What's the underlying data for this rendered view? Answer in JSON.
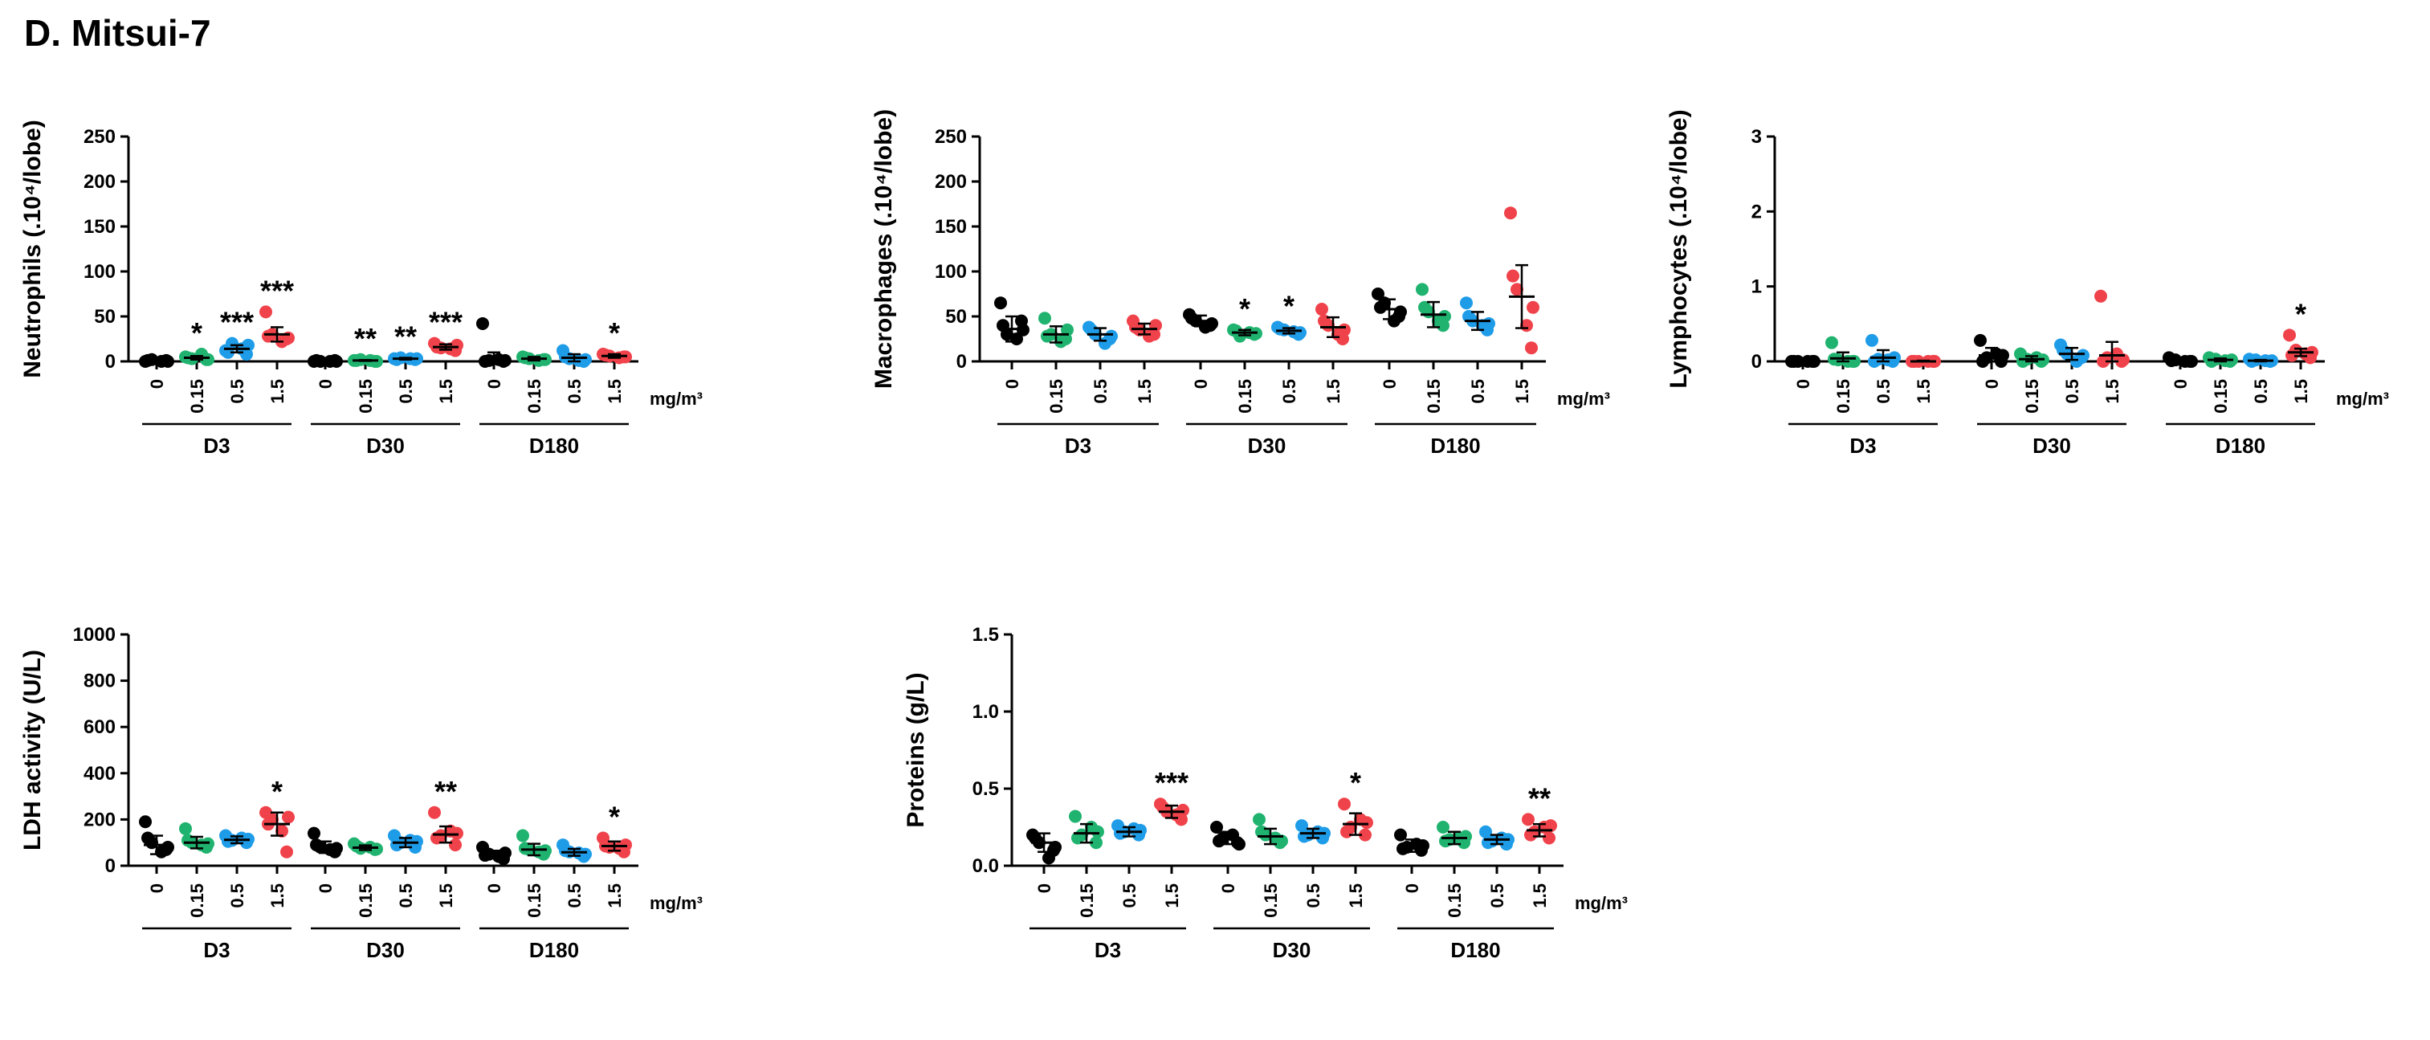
{
  "figure": {
    "title": "D. Mitsui-7"
  },
  "chart_data": [
    {
      "type": "scatter",
      "id": "neutrophils",
      "ylabel": "Neutrophils (.10⁴/lobe)",
      "ylim": [
        0,
        250
      ],
      "yticks": [
        "0",
        "50",
        "100",
        "150",
        "200",
        "250"
      ],
      "ytick_values": [
        0,
        50,
        100,
        150,
        200,
        250
      ],
      "unit_label": "mg/m³",
      "doses": [
        "0",
        "0.15",
        "0.5",
        "1.5"
      ],
      "groups": [
        "D3",
        "D30",
        "D180"
      ],
      "series_colors": [
        "#000000",
        "#1fb36f",
        "#1e9ce8",
        "#f0424a"
      ],
      "data": [
        [
          {
            "points": [
              0,
              1,
              2,
              0,
              1,
              0
            ],
            "mean": 1,
            "sd": 1,
            "sig": ""
          },
          {
            "points": [
              5,
              2,
              3,
              8,
              4,
              2
            ],
            "mean": 4,
            "sd": 2,
            "sig": "*"
          },
          {
            "points": [
              12,
              8,
              20,
              14,
              10,
              18
            ],
            "mean": 14,
            "sd": 4,
            "sig": "***"
          },
          {
            "points": [
              55,
              25,
              30,
              22,
              28,
              26
            ],
            "mean": 30,
            "sd": 8,
            "sig": "***"
          }
        ],
        [
          {
            "points": [
              0,
              1,
              0,
              0,
              1,
              0
            ],
            "mean": 0,
            "sd": 0.5,
            "sig": ""
          },
          {
            "points": [
              1,
              0,
              2,
              1,
              1,
              0
            ],
            "mean": 1,
            "sd": 0.5,
            "sig": "**"
          },
          {
            "points": [
              3,
              2,
              4,
              3,
              2,
              3
            ],
            "mean": 3,
            "sd": 1,
            "sig": "**"
          },
          {
            "points": [
              20,
              12,
              15,
              14,
              16,
              18
            ],
            "mean": 16,
            "sd": 3,
            "sig": "***"
          }
        ],
        [
          {
            "points": [
              42,
              0,
              1,
              2,
              0,
              1
            ],
            "mean": 2,
            "sd": 8,
            "sig": ""
          },
          {
            "points": [
              5,
              2,
              3,
              1,
              4,
              2
            ],
            "mean": 3,
            "sd": 2,
            "sig": ""
          },
          {
            "points": [
              12,
              0,
              3,
              1,
              5,
              2
            ],
            "mean": 4,
            "sd": 4,
            "sig": ""
          },
          {
            "points": [
              8,
              5,
              6,
              4,
              7,
              5
            ],
            "mean": 6,
            "sd": 2,
            "sig": "*"
          }
        ]
      ]
    },
    {
      "type": "scatter",
      "id": "macrophages",
      "ylabel": "Macrophages (.10⁴/lobe)",
      "ylim": [
        0,
        250
      ],
      "yticks": [
        "0",
        "50",
        "100",
        "150",
        "200",
        "250"
      ],
      "ytick_values": [
        0,
        50,
        100,
        150,
        200,
        250
      ],
      "unit_label": "mg/m³",
      "doses": [
        "0",
        "0.15",
        "0.5",
        "1.5"
      ],
      "groups": [
        "D3",
        "D30",
        "D180"
      ],
      "series_colors": [
        "#000000",
        "#1fb36f",
        "#1e9ce8",
        "#f0424a"
      ],
      "data": [
        [
          {
            "points": [
              65,
              45,
              30,
              25,
              40,
              35
            ],
            "mean": 36,
            "sd": 14,
            "sig": ""
          },
          {
            "points": [
              48,
              25,
              30,
              22,
              28,
              35
            ],
            "mean": 30,
            "sd": 9,
            "sig": ""
          },
          {
            "points": [
              38,
              25,
              30,
              20,
              35,
              28
            ],
            "mean": 30,
            "sd": 7,
            "sig": ""
          },
          {
            "points": [
              45,
              30,
              35,
              28,
              38,
              40
            ],
            "mean": 36,
            "sd": 6,
            "sig": ""
          }
        ],
        [
          {
            "points": [
              52,
              40,
              45,
              38,
              48,
              42
            ],
            "mean": 45,
            "sd": 6,
            "sig": ""
          },
          {
            "points": [
              35,
              30,
              28,
              32,
              34,
              31
            ],
            "mean": 32,
            "sd": 3,
            "sig": "*"
          },
          {
            "points": [
              38,
              30,
              35,
              33,
              36,
              32
            ],
            "mean": 34,
            "sd": 3,
            "sig": "*"
          },
          {
            "points": [
              58,
              25,
              40,
              30,
              45,
              35
            ],
            "mean": 38,
            "sd": 11,
            "sig": ""
          }
        ],
        [
          {
            "points": [
              75,
              50,
              65,
              45,
              60,
              55
            ],
            "mean": 58,
            "sd": 11,
            "sig": ""
          },
          {
            "points": [
              80,
              40,
              55,
              45,
              60,
              50
            ],
            "mean": 52,
            "sd": 14,
            "sig": ""
          },
          {
            "points": [
              65,
              35,
              45,
              40,
              50,
              42
            ],
            "mean": 45,
            "sd": 10,
            "sig": ""
          },
          {
            "points": [
              165,
              15,
              80,
              40,
              95,
              60
            ],
            "mean": 72,
            "sd": 35,
            "sig": ""
          }
        ]
      ]
    },
    {
      "type": "scatter",
      "id": "lymphocytes",
      "ylabel": "Lymphocytes (.10⁴/lobe)",
      "ylim": [
        0,
        3
      ],
      "yticks": [
        "0",
        "1",
        "2",
        "3"
      ],
      "ytick_values": [
        0,
        1,
        2,
        3
      ],
      "unit_label": "mg/m³",
      "doses": [
        "0",
        "0.15",
        "0.5",
        "1.5"
      ],
      "groups": [
        "D3",
        "D30",
        "D180"
      ],
      "series_colors": [
        "#000000",
        "#1fb36f",
        "#1e9ce8",
        "#f0424a"
      ],
      "data": [
        [
          {
            "points": [
              0,
              0,
              0,
              0,
              0,
              0
            ],
            "mean": 0,
            "sd": 0.01,
            "sig": ""
          },
          {
            "points": [
              0.25,
              0,
              0.02,
              0,
              0.03,
              0
            ],
            "mean": 0.04,
            "sd": 0.08,
            "sig": ""
          },
          {
            "points": [
              0.28,
              0,
              0.03,
              0.02,
              0,
              0.05
            ],
            "mean": 0.05,
            "sd": 0.1,
            "sig": ""
          },
          {
            "points": [
              0,
              0,
              0,
              0,
              0,
              0
            ],
            "mean": 0,
            "sd": 0.01,
            "sig": ""
          }
        ],
        [
          {
            "points": [
              0.28,
              0,
              0.05,
              0.1,
              0,
              0.08
            ],
            "mean": 0.08,
            "sd": 0.1,
            "sig": ""
          },
          {
            "points": [
              0.1,
              0,
              0.03,
              0.05,
              0,
              0.02
            ],
            "mean": 0.03,
            "sd": 0.04,
            "sig": ""
          },
          {
            "points": [
              0.22,
              0.05,
              0.1,
              0,
              0.15,
              0.08
            ],
            "mean": 0.1,
            "sd": 0.08,
            "sig": ""
          },
          {
            "points": [
              0.87,
              0,
              0.05,
              0.1,
              0,
              0.02
            ],
            "mean": 0.08,
            "sd": 0.18,
            "sig": ""
          }
        ],
        [
          {
            "points": [
              0.05,
              0,
              0.02,
              0,
              0.01,
              0
            ],
            "mean": 0.01,
            "sd": 0.02,
            "sig": ""
          },
          {
            "points": [
              0.05,
              0,
              0.03,
              0.01,
              0,
              0.02
            ],
            "mean": 0.02,
            "sd": 0.02,
            "sig": ""
          },
          {
            "points": [
              0.03,
              0,
              0.02,
              0.01,
              0,
              0.01
            ],
            "mean": 0.01,
            "sd": 0.01,
            "sig": ""
          },
          {
            "points": [
              0.35,
              0.05,
              0.15,
              0.1,
              0.08,
              0.12
            ],
            "mean": 0.12,
            "sd": 0.05,
            "sig": "*"
          }
        ]
      ]
    },
    {
      "type": "scatter",
      "id": "ldh",
      "ylabel": "LDH activity (U/L)",
      "ylim": [
        0,
        1000
      ],
      "yticks": [
        "0",
        "200",
        "400",
        "600",
        "800",
        "1000"
      ],
      "ytick_values": [
        0,
        200,
        400,
        600,
        800,
        1000
      ],
      "unit_label": "mg/m³",
      "doses": [
        "0",
        "0.15",
        "0.5",
        "1.5"
      ],
      "groups": [
        "D3",
        "D30",
        "D180"
      ],
      "series_colors": [
        "#000000",
        "#1fb36f",
        "#1e9ce8",
        "#f0424a"
      ],
      "data": [
        [
          {
            "points": [
              190,
              70,
              100,
              60,
              120,
              80
            ],
            "mean": 90,
            "sd": 40,
            "sig": ""
          },
          {
            "points": [
              160,
              80,
              100,
              90,
              110,
              95
            ],
            "mean": 100,
            "sd": 25,
            "sig": ""
          },
          {
            "points": [
              130,
              100,
              110,
              120,
              105,
              115
            ],
            "mean": 112,
            "sd": 15,
            "sig": ""
          },
          {
            "points": [
              230,
              60,
              200,
              150,
              180,
              210
            ],
            "mean": 180,
            "sd": 50,
            "sig": "*"
          }
        ],
        [
          {
            "points": [
              140,
              60,
              80,
              70,
              90,
              75
            ],
            "mean": 80,
            "sd": 25,
            "sig": ""
          },
          {
            "points": [
              95,
              70,
              75,
              80,
              85,
              72
            ],
            "mean": 78,
            "sd": 10,
            "sig": ""
          },
          {
            "points": [
              130,
              80,
              100,
              110,
              90,
              105
            ],
            "mean": 100,
            "sd": 20,
            "sig": ""
          },
          {
            "points": [
              230,
              90,
              130,
              150,
              120,
              140
            ],
            "mean": 135,
            "sd": 35,
            "sig": "**"
          }
        ],
        [
          {
            "points": [
              80,
              30,
              50,
              40,
              45,
              55
            ],
            "mean": 50,
            "sd": 15,
            "sig": ""
          },
          {
            "points": [
              130,
              50,
              70,
              60,
              75,
              65
            ],
            "mean": 70,
            "sd": 25,
            "sig": ""
          },
          {
            "points": [
              90,
              40,
              60,
              55,
              65,
              50
            ],
            "mean": 58,
            "sd": 15,
            "sig": ""
          },
          {
            "points": [
              120,
              60,
              80,
              75,
              85,
              90
            ],
            "mean": 85,
            "sd": 20,
            "sig": "*"
          }
        ]
      ]
    },
    {
      "type": "scatter",
      "id": "proteins",
      "ylabel": "Proteins (g/L)",
      "ylim": [
        0,
        1.5
      ],
      "yticks": [
        "0.0",
        "0.5",
        "1.0",
        "1.5"
      ],
      "ytick_values": [
        0,
        0.5,
        1.0,
        1.5
      ],
      "unit_label": "mg/m³",
      "doses": [
        "0",
        "0.15",
        "0.5",
        "1.5"
      ],
      "groups": [
        "D3",
        "D30",
        "D180"
      ],
      "series_colors": [
        "#000000",
        "#1fb36f",
        "#1e9ce8",
        "#f0424a"
      ],
      "data": [
        [
          {
            "points": [
              0.2,
              0.1,
              0.15,
              0.05,
              0.18,
              0.12
            ],
            "mean": 0.15,
            "sd": 0.06,
            "sig": ""
          },
          {
            "points": [
              0.32,
              0.15,
              0.2,
              0.25,
              0.18,
              0.22
            ],
            "mean": 0.21,
            "sd": 0.06,
            "sig": ""
          },
          {
            "points": [
              0.26,
              0.2,
              0.22,
              0.24,
              0.21,
              0.23
            ],
            "mean": 0.22,
            "sd": 0.03,
            "sig": ""
          },
          {
            "points": [
              0.4,
              0.3,
              0.35,
              0.33,
              0.38,
              0.36
            ],
            "mean": 0.35,
            "sd": 0.04,
            "sig": "***"
          }
        ],
        [
          {
            "points": [
              0.25,
              0.15,
              0.18,
              0.2,
              0.16,
              0.14
            ],
            "mean": 0.18,
            "sd": 0.04,
            "sig": ""
          },
          {
            "points": [
              0.3,
              0.15,
              0.2,
              0.18,
              0.22,
              0.16
            ],
            "mean": 0.19,
            "sd": 0.05,
            "sig": ""
          },
          {
            "points": [
              0.26,
              0.18,
              0.2,
              0.22,
              0.19,
              0.21
            ],
            "mean": 0.21,
            "sd": 0.03,
            "sig": ""
          },
          {
            "points": [
              0.4,
              0.2,
              0.25,
              0.3,
              0.22,
              0.28
            ],
            "mean": 0.27,
            "sd": 0.07,
            "sig": "*"
          }
        ],
        [
          {
            "points": [
              0.2,
              0.1,
              0.12,
              0.14,
              0.11,
              0.13
            ],
            "mean": 0.13,
            "sd": 0.04,
            "sig": ""
          },
          {
            "points": [
              0.25,
              0.15,
              0.17,
              0.18,
              0.16,
              0.19
            ],
            "mean": 0.18,
            "sd": 0.04,
            "sig": ""
          },
          {
            "points": [
              0.22,
              0.14,
              0.16,
              0.18,
              0.15,
              0.17
            ],
            "mean": 0.17,
            "sd": 0.03,
            "sig": ""
          },
          {
            "points": [
              0.3,
              0.18,
              0.22,
              0.25,
              0.2,
              0.26
            ],
            "mean": 0.23,
            "sd": 0.04,
            "sig": "**"
          }
        ]
      ]
    }
  ]
}
